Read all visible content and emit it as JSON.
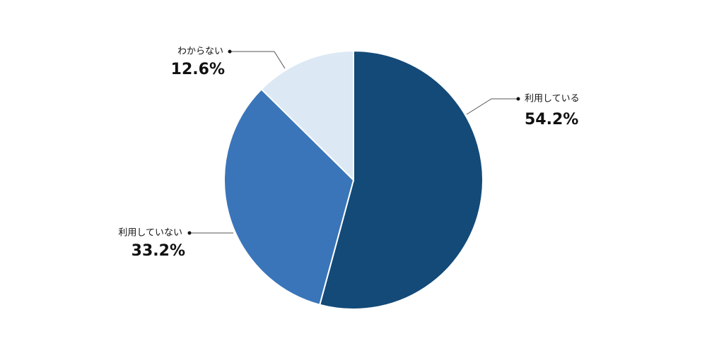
{
  "chart_data": {
    "type": "pie",
    "categories": [
      "利用している",
      "利用していない",
      "わからない"
    ],
    "values": [
      54.2,
      33.2,
      12.6
    ],
    "value_labels": [
      "54.2%",
      "33.2%",
      "12.6%"
    ],
    "colors": [
      "#134a78",
      "#3a75b9",
      "#dce9f4"
    ]
  }
}
